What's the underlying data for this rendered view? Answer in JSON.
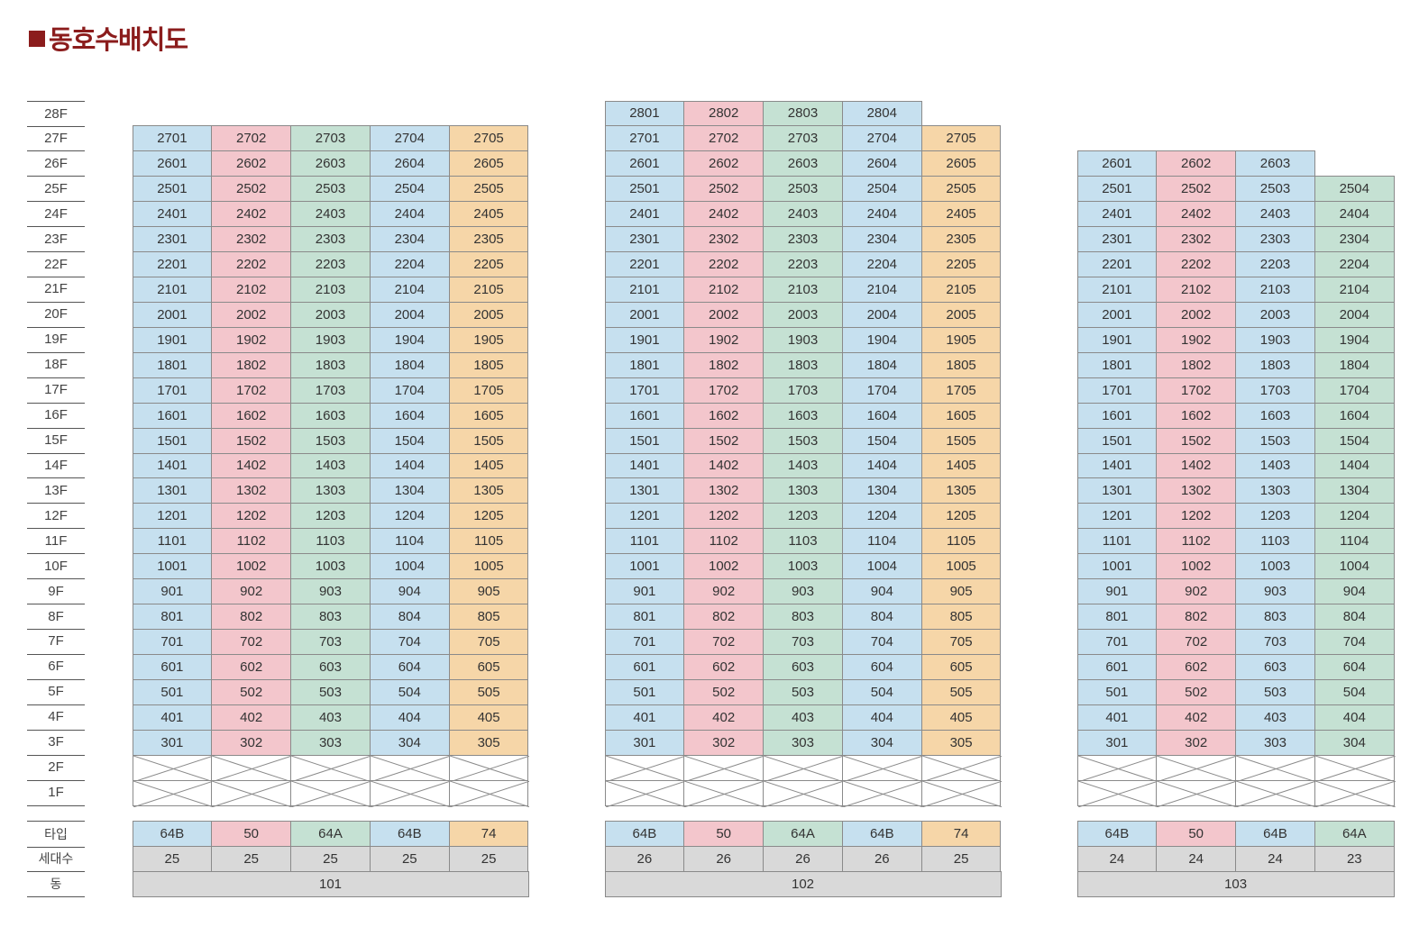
{
  "title": {
    "marker": "■",
    "text": "동호수배치도"
  },
  "colors": {
    "64B": "#c6e0ef",
    "50": "#f3c6cc",
    "64A": "#c5e1d3",
    "74": "#f6d6a8",
    "gray": "#d9d9d9",
    "border": "#8a8a8a"
  },
  "floors": [
    "28F",
    "27F",
    "26F",
    "25F",
    "24F",
    "23F",
    "22F",
    "21F",
    "20F",
    "19F",
    "18F",
    "17F",
    "16F",
    "15F",
    "14F",
    "13F",
    "12F",
    "11F",
    "10F",
    "9F",
    "8F",
    "7F",
    "6F",
    "5F",
    "4F",
    "3F",
    "2F",
    "1F"
  ],
  "row_labels": {
    "type": "타입",
    "households": "세대수",
    "building": "동"
  },
  "buildings": [
    {
      "name": "101",
      "columns": [
        {
          "line": "01",
          "type": "64B",
          "count": "25",
          "top_floor": 27
        },
        {
          "line": "02",
          "type": "50",
          "count": "25",
          "top_floor": 27
        },
        {
          "line": "03",
          "type": "64A",
          "count": "25",
          "top_floor": 27
        },
        {
          "line": "04",
          "type": "64B",
          "count": "25",
          "top_floor": 27
        },
        {
          "line": "05",
          "type": "74",
          "count": "25",
          "top_floor": 27
        }
      ]
    },
    {
      "name": "102",
      "columns": [
        {
          "line": "01",
          "type": "64B",
          "count": "26",
          "top_floor": 28
        },
        {
          "line": "02",
          "type": "50",
          "count": "26",
          "top_floor": 28
        },
        {
          "line": "03",
          "type": "64A",
          "count": "26",
          "top_floor": 28
        },
        {
          "line": "04",
          "type": "64B",
          "count": "26",
          "top_floor": 28
        },
        {
          "line": "05",
          "type": "74",
          "count": "25",
          "top_floor": 27
        }
      ]
    },
    {
      "name": "103",
      "columns": [
        {
          "line": "01",
          "type": "64B",
          "count": "24",
          "top_floor": 26
        },
        {
          "line": "02",
          "type": "50",
          "count": "24",
          "top_floor": 26
        },
        {
          "line": "03",
          "type": "64B",
          "count": "24",
          "top_floor": 26
        },
        {
          "line": "04",
          "type": "64A",
          "count": "23",
          "top_floor": 25
        }
      ]
    }
  ],
  "first_unit_floor": 3
}
